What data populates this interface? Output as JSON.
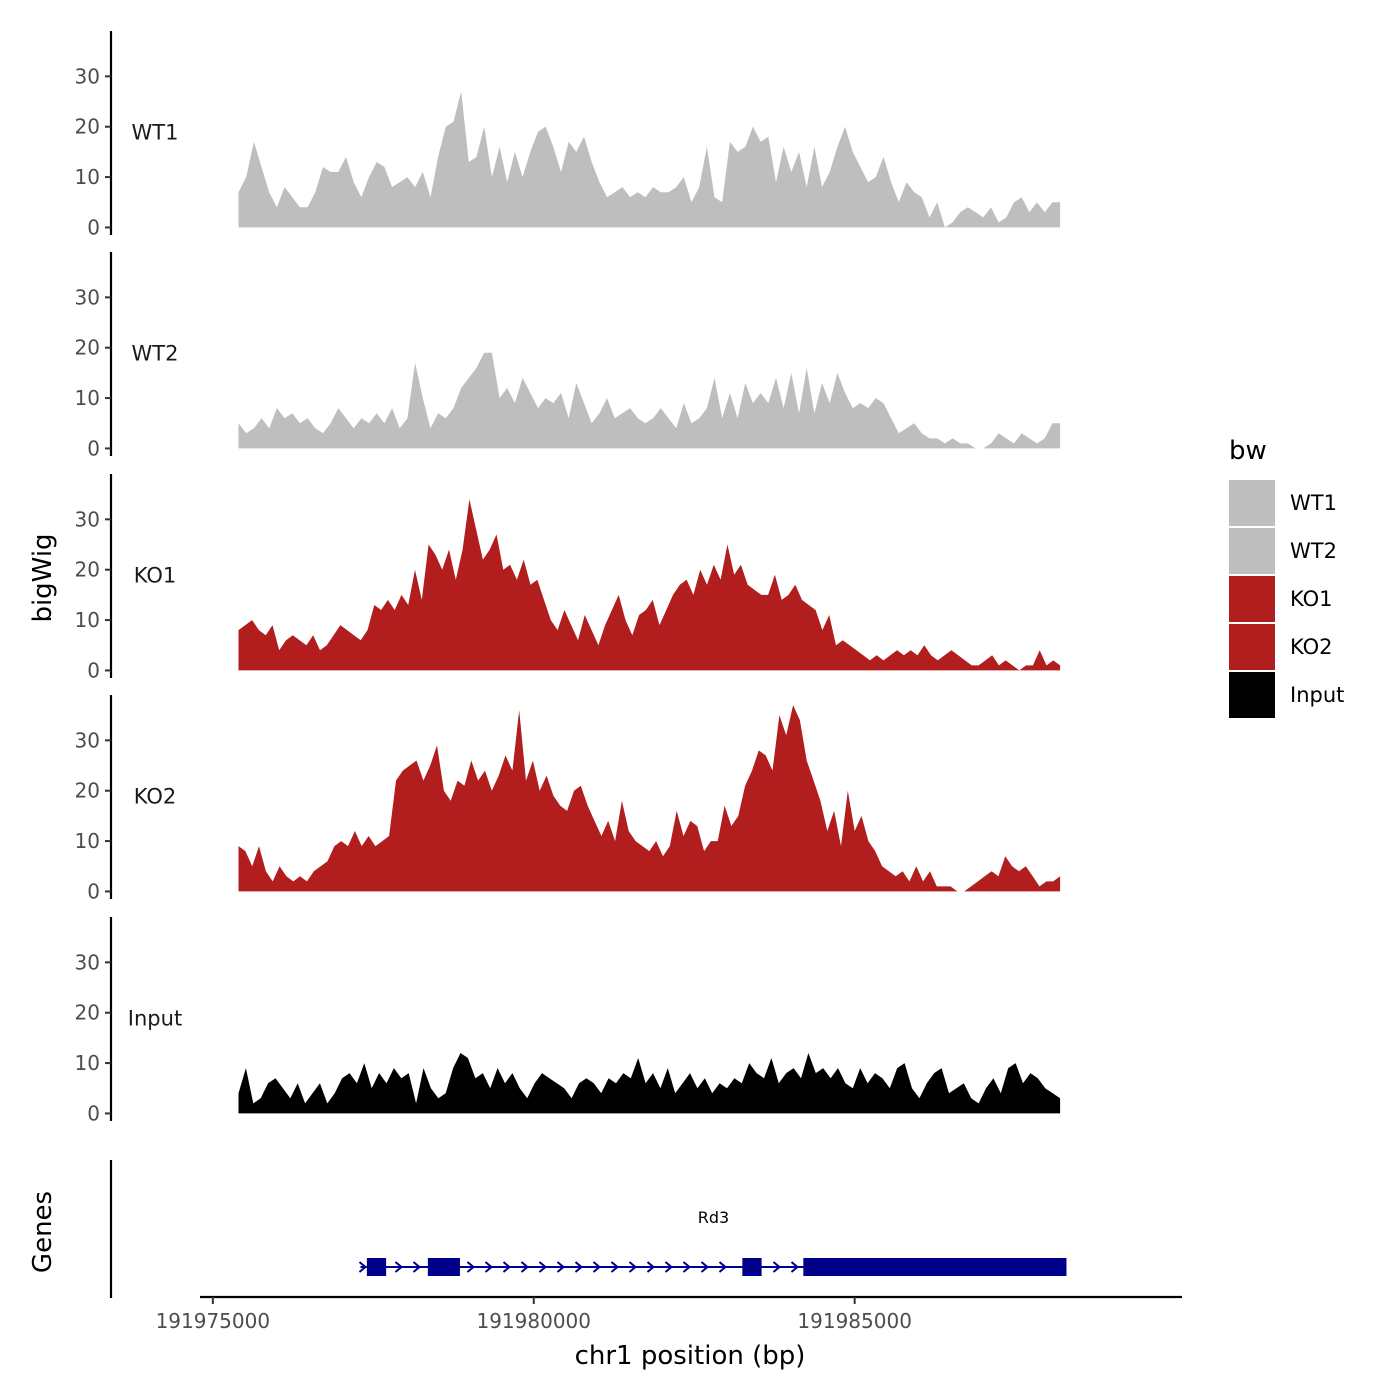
{
  "chart_data": {
    "type": "area",
    "title": "",
    "xlabel": "chr1 position (bp)",
    "ylabel": "bigWig",
    "genes_label": "Genes",
    "xlim": [
      191974800,
      191990100
    ],
    "ylim": [
      -1.5,
      39
    ],
    "x_ticks": [
      191975000,
      191980000,
      191985000
    ],
    "x_tick_labels": [
      "191975000",
      "191980000",
      "191985000"
    ],
    "y_ticks": [
      0,
      10,
      20,
      30
    ],
    "y_tick_labels": [
      "0",
      "10",
      "20",
      "30"
    ],
    "grid": false,
    "legend": {
      "title": "bw",
      "position": "right",
      "entries": [
        {
          "name": "WT1",
          "color": "#bebebe"
        },
        {
          "name": "WT2",
          "color": "#bebebe"
        },
        {
          "name": "KO1",
          "color": "#b21e1e"
        },
        {
          "name": "KO2",
          "color": "#b21e1e"
        },
        {
          "name": "Input",
          "color": "#000000"
        }
      ]
    },
    "x_start": 191975400,
    "x_end": 191988200,
    "series": [
      {
        "name": "WT1",
        "color": "#bebebe",
        "values": [
          7,
          10,
          17,
          12,
          7,
          4,
          8,
          6,
          4,
          4,
          7,
          12,
          11,
          11,
          14,
          9,
          6,
          10,
          13,
          12,
          8,
          9,
          10,
          8,
          11,
          6,
          14,
          20,
          21,
          27,
          13,
          14,
          20,
          10,
          16,
          9,
          15,
          10,
          15,
          19,
          20,
          16,
          11,
          17,
          15,
          18,
          13,
          9,
          6,
          7,
          8,
          6,
          7,
          6,
          8,
          7,
          7,
          8,
          10,
          5,
          8,
          16,
          6,
          5,
          17,
          15,
          16,
          20,
          17,
          18,
          9,
          16,
          11,
          15,
          8,
          16,
          8,
          11,
          16,
          20,
          15,
          12,
          9,
          10,
          14,
          9,
          5,
          9,
          7,
          6,
          2,
          5,
          0,
          1,
          3,
          4,
          3,
          2,
          4,
          1,
          2,
          5,
          6,
          3,
          5,
          3,
          5,
          5
        ]
      },
      {
        "name": "WT2",
        "color": "#bebebe",
        "values": [
          5,
          3,
          4,
          6,
          4,
          8,
          6,
          7,
          5,
          6,
          4,
          3,
          5,
          8,
          6,
          4,
          6,
          5,
          7,
          5,
          8,
          4,
          6,
          17,
          10,
          4,
          7,
          6,
          8,
          12,
          14,
          16,
          19,
          19,
          10,
          12,
          9,
          14,
          11,
          8,
          10,
          9,
          11,
          6,
          13,
          9,
          5,
          7,
          10,
          6,
          7,
          8,
          6,
          5,
          6,
          8,
          6,
          4,
          9,
          5,
          6,
          8,
          14,
          6,
          11,
          6,
          13,
          9,
          11,
          9,
          14,
          8,
          15,
          7,
          16,
          7,
          13,
          9,
          15,
          11,
          8,
          9,
          8,
          10,
          9,
          6,
          3,
          4,
          5,
          3,
          2,
          2,
          1,
          2,
          1,
          1,
          0,
          0,
          1,
          3,
          2,
          1,
          3,
          2,
          1,
          2,
          5,
          5
        ]
      },
      {
        "name": "KO1",
        "color": "#b21e1e",
        "values": [
          8,
          9,
          10,
          8,
          7,
          9,
          4,
          6,
          7,
          6,
          5,
          7,
          4,
          5,
          7,
          9,
          8,
          7,
          6,
          8,
          13,
          12,
          14,
          12,
          15,
          13,
          20,
          14,
          25,
          23,
          20,
          24,
          18,
          24,
          34,
          28,
          22,
          24,
          27,
          20,
          21,
          18,
          22,
          17,
          18,
          14,
          10,
          8,
          12,
          9,
          6,
          11,
          8,
          5,
          9,
          12,
          15,
          10,
          7,
          11,
          12,
          14,
          9,
          12,
          15,
          17,
          18,
          15,
          20,
          17,
          21,
          18,
          25,
          19,
          21,
          17,
          16,
          15,
          15,
          19,
          14,
          15,
          17,
          14,
          13,
          12,
          8,
          11,
          5,
          6,
          5,
          4,
          3,
          2,
          3,
          2,
          3,
          4,
          3,
          4,
          3,
          5,
          3,
          2,
          3,
          4,
          3,
          2,
          1,
          1,
          2,
          3,
          1,
          2,
          1,
          0,
          1,
          1,
          4,
          1,
          2,
          1
        ]
      },
      {
        "name": "KO2",
        "color": "#b21e1e",
        "values": [
          9,
          8,
          5,
          9,
          4,
          2,
          5,
          3,
          2,
          3,
          2,
          4,
          5,
          6,
          9,
          10,
          9,
          12,
          9,
          11,
          9,
          10,
          11,
          22,
          24,
          25,
          26,
          22,
          25,
          29,
          20,
          18,
          22,
          21,
          26,
          22,
          24,
          20,
          23,
          27,
          24,
          36,
          22,
          26,
          20,
          23,
          19,
          17,
          16,
          20,
          21,
          17,
          14,
          11,
          14,
          10,
          18,
          12,
          10,
          9,
          8,
          10,
          7,
          9,
          16,
          11,
          14,
          13,
          8,
          10,
          10,
          17,
          13,
          15,
          21,
          24,
          28,
          27,
          24,
          35,
          31,
          37,
          34,
          26,
          22,
          18,
          12,
          16,
          9,
          20,
          12,
          15,
          10,
          8,
          5,
          4,
          3,
          4,
          2,
          5,
          2,
          4,
          1,
          1,
          1,
          0,
          0,
          1,
          2,
          3,
          4,
          3,
          7,
          5,
          4,
          5,
          3,
          1,
          2,
          2,
          3
        ]
      },
      {
        "name": "Input",
        "color": "#000000",
        "values": [
          4,
          9,
          2,
          3,
          6,
          7,
          5,
          3,
          6,
          2,
          4,
          6,
          2,
          4,
          7,
          8,
          6,
          10,
          5,
          8,
          6,
          9,
          7,
          8,
          2,
          9,
          5,
          3,
          4,
          9,
          12,
          11,
          7,
          8,
          5,
          9,
          6,
          8,
          5,
          3,
          6,
          8,
          7,
          6,
          5,
          3,
          6,
          7,
          6,
          4,
          7,
          6,
          8,
          7,
          11,
          6,
          8,
          5,
          9,
          4,
          6,
          8,
          5,
          7,
          4,
          6,
          5,
          7,
          6,
          10,
          8,
          7,
          11,
          6,
          8,
          9,
          7,
          12,
          8,
          9,
          7,
          9,
          6,
          5,
          9,
          6,
          8,
          7,
          5,
          9,
          10,
          5,
          3,
          6,
          8,
          9,
          4,
          5,
          6,
          3,
          2,
          5,
          7,
          4,
          9,
          10,
          6,
          8,
          7,
          5,
          4,
          3
        ]
      }
    ],
    "genes": [
      {
        "name": "Rd3",
        "strand": "+",
        "color": "#00008b",
        "start": 191977300,
        "end": 191988300,
        "exons": [
          [
            191977400,
            191977700
          ],
          [
            191978350,
            191978850
          ],
          [
            191983250,
            191983550
          ],
          [
            191984200,
            191988300
          ]
        ]
      }
    ]
  }
}
